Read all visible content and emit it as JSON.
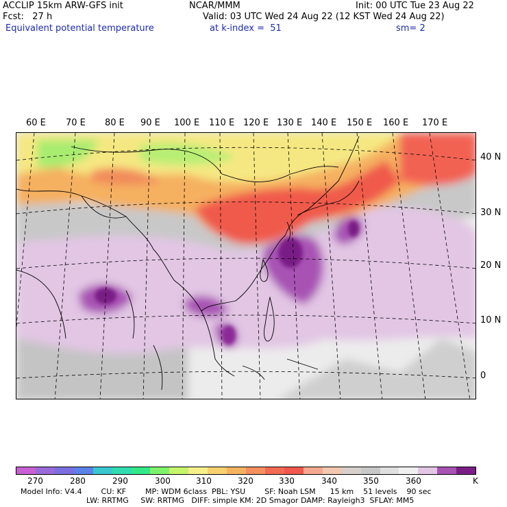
{
  "header": {
    "line1_left": "ACCLIP 15km ARW-GFS init",
    "line1_center": "NCAR/MMM",
    "line1_right": "Init: 00 UTC Tue 23 Aug 22",
    "line2_left": "Fcst:   27 h",
    "line2_right": "Valid: 03 UTC Wed 24 Aug 22 (12 KST Wed 24 Aug 22)",
    "field_name": "Equivalent potential temperature",
    "level": "at k-index =  51",
    "smoothing": "sm= 2"
  },
  "map": {
    "lon_labels": [
      "60 E",
      "70 E",
      "80 E",
      "90 E",
      "100 E",
      "110 E",
      "120 E",
      "130 E",
      "140 E",
      "150 E",
      "160 E",
      "170 E"
    ],
    "lat_labels": [
      "40 N",
      "30 N",
      "20 N",
      "10 N",
      "0"
    ]
  },
  "colorbar": {
    "colors": [
      "#c85fd2",
      "#9a6ad8",
      "#7b6fe0",
      "#5b82e8",
      "#39c6cf",
      "#31dcae",
      "#33e888",
      "#7ef26a",
      "#c5f56c",
      "#f5f08a",
      "#f7d070",
      "#f5b260",
      "#f3905e",
      "#f26a52",
      "#f0584e",
      "#f4a890",
      "#f2c8b0",
      "#d8d0cc",
      "#c8c8c8",
      "#e0e0e0",
      "#f0f0f0",
      "#e2c6e4",
      "#a852b4",
      "#7a1e86"
    ],
    "labels": [
      "270",
      "280",
      "290",
      "300",
      "310",
      "320",
      "330",
      "340",
      "350",
      "360"
    ],
    "unit": "K"
  },
  "footer": {
    "line1": "Model Info: V4.4        CU: KF        MP: WDM 6class  PBL: YSU        SF: Noah LSM      15 km    51 levels    90 sec",
    "line2": "LW: RRTMG     SW: RRTMG   DIFF: simple KM: 2D Smagor DAMP: Rayleigh3  SFLAY: MM5"
  }
}
